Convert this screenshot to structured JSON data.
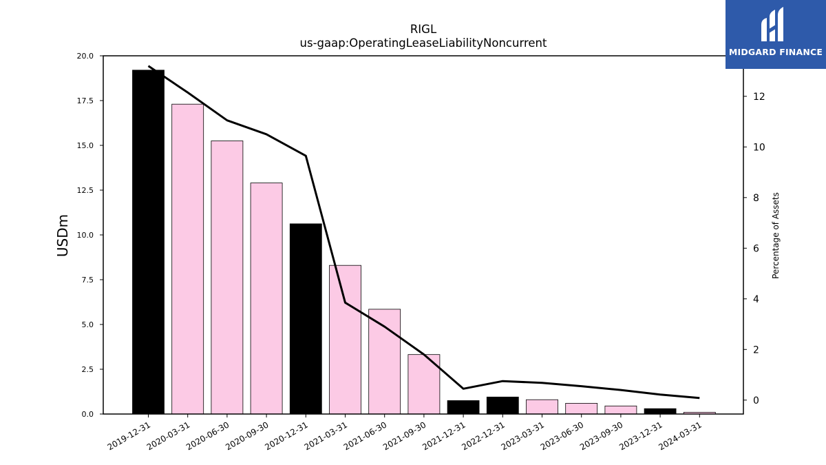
{
  "chart_data": {
    "type": "bar",
    "title": "RIGL",
    "subtitle": "us-gaap:OperatingLeaseLiabilityNoncurrent",
    "ylabel": "USDm",
    "y2label": "Percentage of Assets",
    "categories": [
      "2019-12-31",
      "2020-03-31",
      "2020-06-30",
      "2020-09-30",
      "2020-12-31",
      "2021-03-31",
      "2021-06-30",
      "2021-09-30",
      "2021-12-31",
      "2022-12-31",
      "2023-03-31",
      "2023-06-30",
      "2023-09-30",
      "2023-12-31",
      "2024-03-31"
    ],
    "series": [
      {
        "type": "bar",
        "values": [
          19.2,
          17.3,
          15.25,
          12.9,
          10.62,
          8.3,
          5.85,
          3.32,
          0.75,
          0.95,
          0.8,
          0.6,
          0.45,
          0.3,
          0.1
        ],
        "colors": [
          "#000000",
          "#fccae5",
          "#fccae5",
          "#fccae5",
          "#000000",
          "#fccae5",
          "#fccae5",
          "#fccae5",
          "#000000",
          "#000000",
          "#fccae5",
          "#fccae5",
          "#fccae5",
          "#000000",
          "#fccae5"
        ]
      },
      {
        "type": "line",
        "axis": "right",
        "values": [
          13.2,
          12.15,
          11.05,
          10.5,
          9.65,
          3.85,
          2.9,
          1.8,
          0.45,
          0.75,
          0.68,
          0.55,
          0.4,
          0.22,
          0.08
        ],
        "color": "#000000"
      }
    ],
    "ylim": [
      0,
      20
    ],
    "y2lim": [
      -0.55,
      13.6
    ],
    "yticks": [
      "0.0",
      "2.5",
      "5.0",
      "7.5",
      "10.0",
      "12.5",
      "15.0",
      "17.5",
      "20.0"
    ],
    "y2ticks": [
      "0",
      "2",
      "4",
      "6",
      "8",
      "10",
      "12"
    ],
    "grid": false,
    "legend": "none"
  },
  "logo": {
    "text": "MIDGARD FINANCE"
  }
}
